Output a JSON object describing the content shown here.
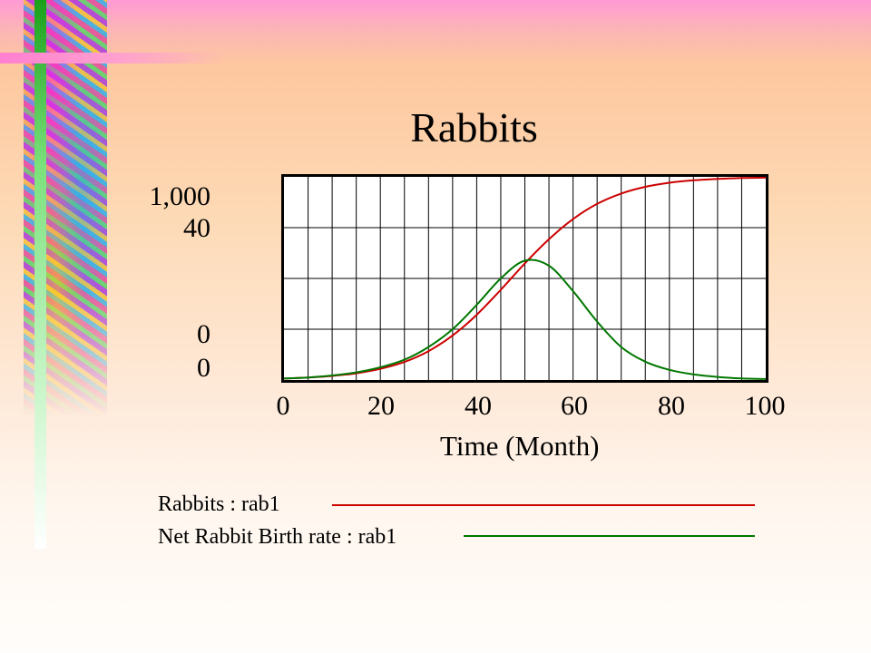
{
  "chart_data": {
    "type": "line",
    "title": "Rabbits",
    "xlabel": "Time (Month)",
    "ylabel": "",
    "x_ticks": [
      "0",
      "20",
      "40",
      "60",
      "80",
      "100"
    ],
    "y_axes": [
      {
        "series": "Rabbits : rab1",
        "top_label": "1,000",
        "bottom_label": "0",
        "ylim": [
          0,
          1000
        ]
      },
      {
        "series": "Net Rabbit Birth rate : rab1",
        "top_label": "40",
        "bottom_label": "0",
        "ylim": [
          0,
          40
        ]
      }
    ],
    "xlim": [
      0,
      100
    ],
    "grid": true,
    "legend_placement": "bottom",
    "x": [
      0,
      5,
      10,
      15,
      20,
      25,
      30,
      35,
      40,
      45,
      50,
      55,
      60,
      65,
      70,
      75,
      80,
      85,
      90,
      95,
      100
    ],
    "series": [
      {
        "name": "Rabbits : rab1",
        "color": "#cc0000",
        "axis": 0,
        "values": [
          7,
          12,
          20,
          33,
          55,
          89,
          142,
          219,
          321,
          444,
          574,
          693,
          792,
          867,
          918,
          951,
          971,
          983,
          990,
          994,
          996
        ]
      },
      {
        "name": "Net Rabbit Birth rate : rab1",
        "color": "#007700",
        "axis": 1,
        "values": [
          0.3,
          0.5,
          0.9,
          1.5,
          2.5,
          4.0,
          6.5,
          10.0,
          14.8,
          20.0,
          23.5,
          22.5,
          17.5,
          11.5,
          6.5,
          3.6,
          2.0,
          1.1,
          0.6,
          0.3,
          0.2
        ]
      }
    ]
  },
  "legend": {
    "item1": {
      "label": "Rabbits : rab1",
      "color": "#cc0000"
    },
    "item2": {
      "label": "Net Rabbit Birth rate : rab1",
      "color": "#007700"
    }
  }
}
